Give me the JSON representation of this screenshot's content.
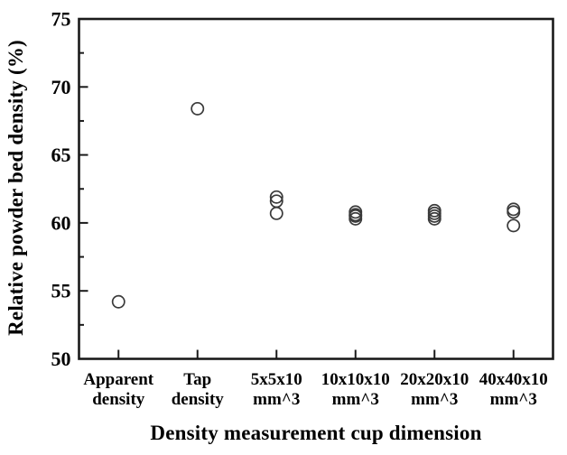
{
  "figure": {
    "background_color": "#ffffff",
    "axis_color": "#1a1a1a",
    "text_color": "#000000"
  },
  "chart_data": {
    "type": "scatter",
    "title": "",
    "xlabel": "Density measurement cup dimension",
    "ylabel": "Relative powder bed density (%)",
    "ylim": [
      50,
      75
    ],
    "y_major_tick_step": 5,
    "y_minor_tick_step": 2.5,
    "y_tick_labels": [
      "50",
      "55",
      "60",
      "65",
      "70",
      "75"
    ],
    "grid": false,
    "legend": null,
    "marker": {
      "type": "open-circle",
      "stroke_color": "#3a3a3a",
      "fill": "none",
      "radius_px": 6.6,
      "stroke_width_px": 1.7
    },
    "categories": [
      "Apparent density",
      "Tap density",
      "5x5x10 mm^3",
      "10x10x10 mm^3",
      "20x20x10 mm^3",
      "40x40x10 mm^3"
    ],
    "category_tick_labels": [
      [
        "Apparent",
        "density"
      ],
      [
        "Tap",
        "density"
      ],
      [
        "5x5x10",
        "mm^3"
      ],
      [
        "10x10x10",
        "mm^3"
      ],
      [
        "20x20x10",
        "mm^3"
      ],
      [
        "40x40x10",
        "mm^3"
      ]
    ],
    "series": [
      {
        "name": "Relative powder bed density",
        "points": [
          {
            "category": "Apparent density",
            "values": [
              54.2
            ]
          },
          {
            "category": "Tap density",
            "values": [
              68.4
            ]
          },
          {
            "category": "5x5x10 mm^3",
            "values": [
              61.9,
              61.6,
              60.7
            ]
          },
          {
            "category": "10x10x10 mm^3",
            "values": [
              60.8,
              60.6,
              60.5,
              60.3
            ]
          },
          {
            "category": "20x20x10 mm^3",
            "values": [
              60.9,
              60.7,
              60.5,
              60.3
            ]
          },
          {
            "category": "40x40x10 mm^3",
            "values": [
              61.0,
              60.8,
              59.8
            ]
          }
        ]
      }
    ]
  }
}
